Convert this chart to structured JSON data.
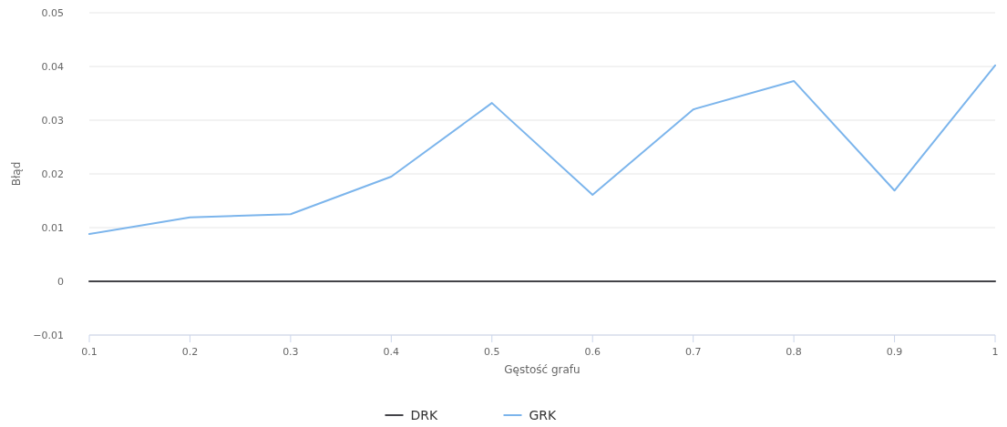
{
  "chart_data": {
    "type": "line",
    "xlabel": "Gęstość grafu",
    "ylabel": "Błąd",
    "x": [
      0.1,
      0.2,
      0.3,
      0.4,
      0.5,
      0.6,
      0.7,
      0.8,
      0.9,
      1
    ],
    "series": [
      {
        "name": "DRK",
        "color": "#434348",
        "values": [
          0,
          0,
          0,
          0,
          0,
          0,
          0,
          0,
          0,
          0
        ]
      },
      {
        "name": "GRK",
        "color": "#7cb5ec",
        "values": [
          0.0088,
          0.0119,
          0.0125,
          0.0195,
          0.0332,
          0.0161,
          0.032,
          0.0373,
          0.0169,
          0.0402
        ]
      }
    ],
    "xlim": [
      0.1,
      1
    ],
    "xticks": [
      0.1,
      0.2,
      0.3,
      0.4,
      0.5,
      0.6,
      0.7,
      0.8,
      0.9,
      {
        "value": 1,
        "label": "1"
      }
    ],
    "ylim": [
      -0.01,
      0.05
    ],
    "yticks": [
      {
        "value": -0.01,
        "label": "−0.01"
      },
      0,
      0.01,
      0.02,
      0.03,
      0.04,
      0.05
    ],
    "grid": "y",
    "legend": "bottom",
    "marker": "none",
    "line_style": "solid"
  }
}
